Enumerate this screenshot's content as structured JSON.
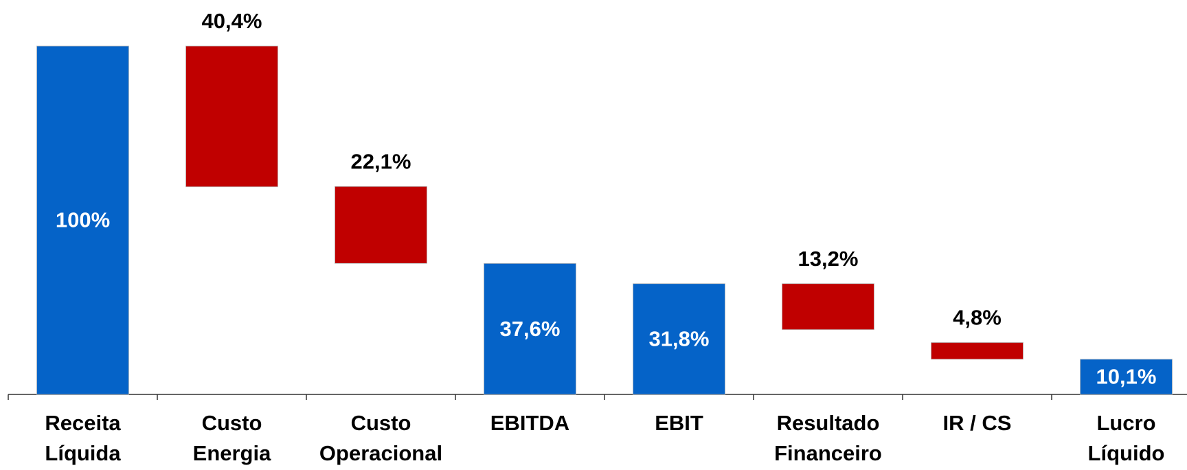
{
  "chart_data": {
    "type": "waterfall",
    "categories": [
      [
        "Receita",
        "Líquida"
      ],
      [
        "Custo",
        "Energia"
      ],
      [
        "Custo",
        "Operacional"
      ],
      [
        "EBITDA"
      ],
      [
        "EBIT"
      ],
      [
        "Resultado",
        "Financeiro"
      ],
      [
        "IR / CS"
      ],
      [
        "Lucro",
        "Líquido"
      ]
    ],
    "values": [
      100,
      40.4,
      22.1,
      37.6,
      31.8,
      13.2,
      4.8,
      10.1
    ],
    "value_labels": [
      "100%",
      "40,4%",
      "22,1%",
      "37,6%",
      "31,8%",
      "13,2%",
      "4,8%",
      "10,1%"
    ],
    "kinds": [
      "total",
      "decrease",
      "decrease",
      "total",
      "total",
      "decrease",
      "decrease",
      "total"
    ],
    "colors": {
      "total": "#0563c8",
      "decrease": "#c00000"
    },
    "ylim": [
      0,
      100
    ]
  }
}
